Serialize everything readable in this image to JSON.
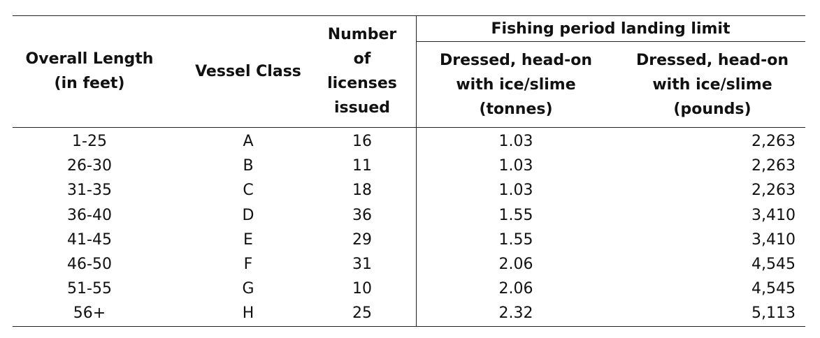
{
  "headers": {
    "overall_length": "Overall Length\n(in feet)",
    "vessel_class": "Vessel Class",
    "number_licenses": "Number\nof\nlicenses\nissued",
    "group": "Fishing period landing limit",
    "tonnes": "Dressed, head-on\nwith ice/slime\n(tonnes)",
    "pounds": "Dressed, head-on\nwith ice/slime\n(pounds)"
  },
  "rows": [
    {
      "length": "1-25",
      "class": "A",
      "licenses": "16",
      "tonnes": "1.03",
      "pounds": "2,263"
    },
    {
      "length": "26-30",
      "class": "B",
      "licenses": "11",
      "tonnes": "1.03",
      "pounds": "2,263"
    },
    {
      "length": "31-35",
      "class": "C",
      "licenses": "18",
      "tonnes": "1.03",
      "pounds": "2,263"
    },
    {
      "length": "36-40",
      "class": "D",
      "licenses": "36",
      "tonnes": "1.55",
      "pounds": "3,410"
    },
    {
      "length": "41-45",
      "class": "E",
      "licenses": "29",
      "tonnes": "1.55",
      "pounds": "3,410"
    },
    {
      "length": "46-50",
      "class": "F",
      "licenses": "31",
      "tonnes": "2.06",
      "pounds": "4,545"
    },
    {
      "length": "51-55",
      "class": "G",
      "licenses": "10",
      "tonnes": "2.06",
      "pounds": "4,545"
    },
    {
      "length": "56+",
      "class": "H",
      "licenses": "25",
      "tonnes": "2.32",
      "pounds": "5,113"
    }
  ]
}
